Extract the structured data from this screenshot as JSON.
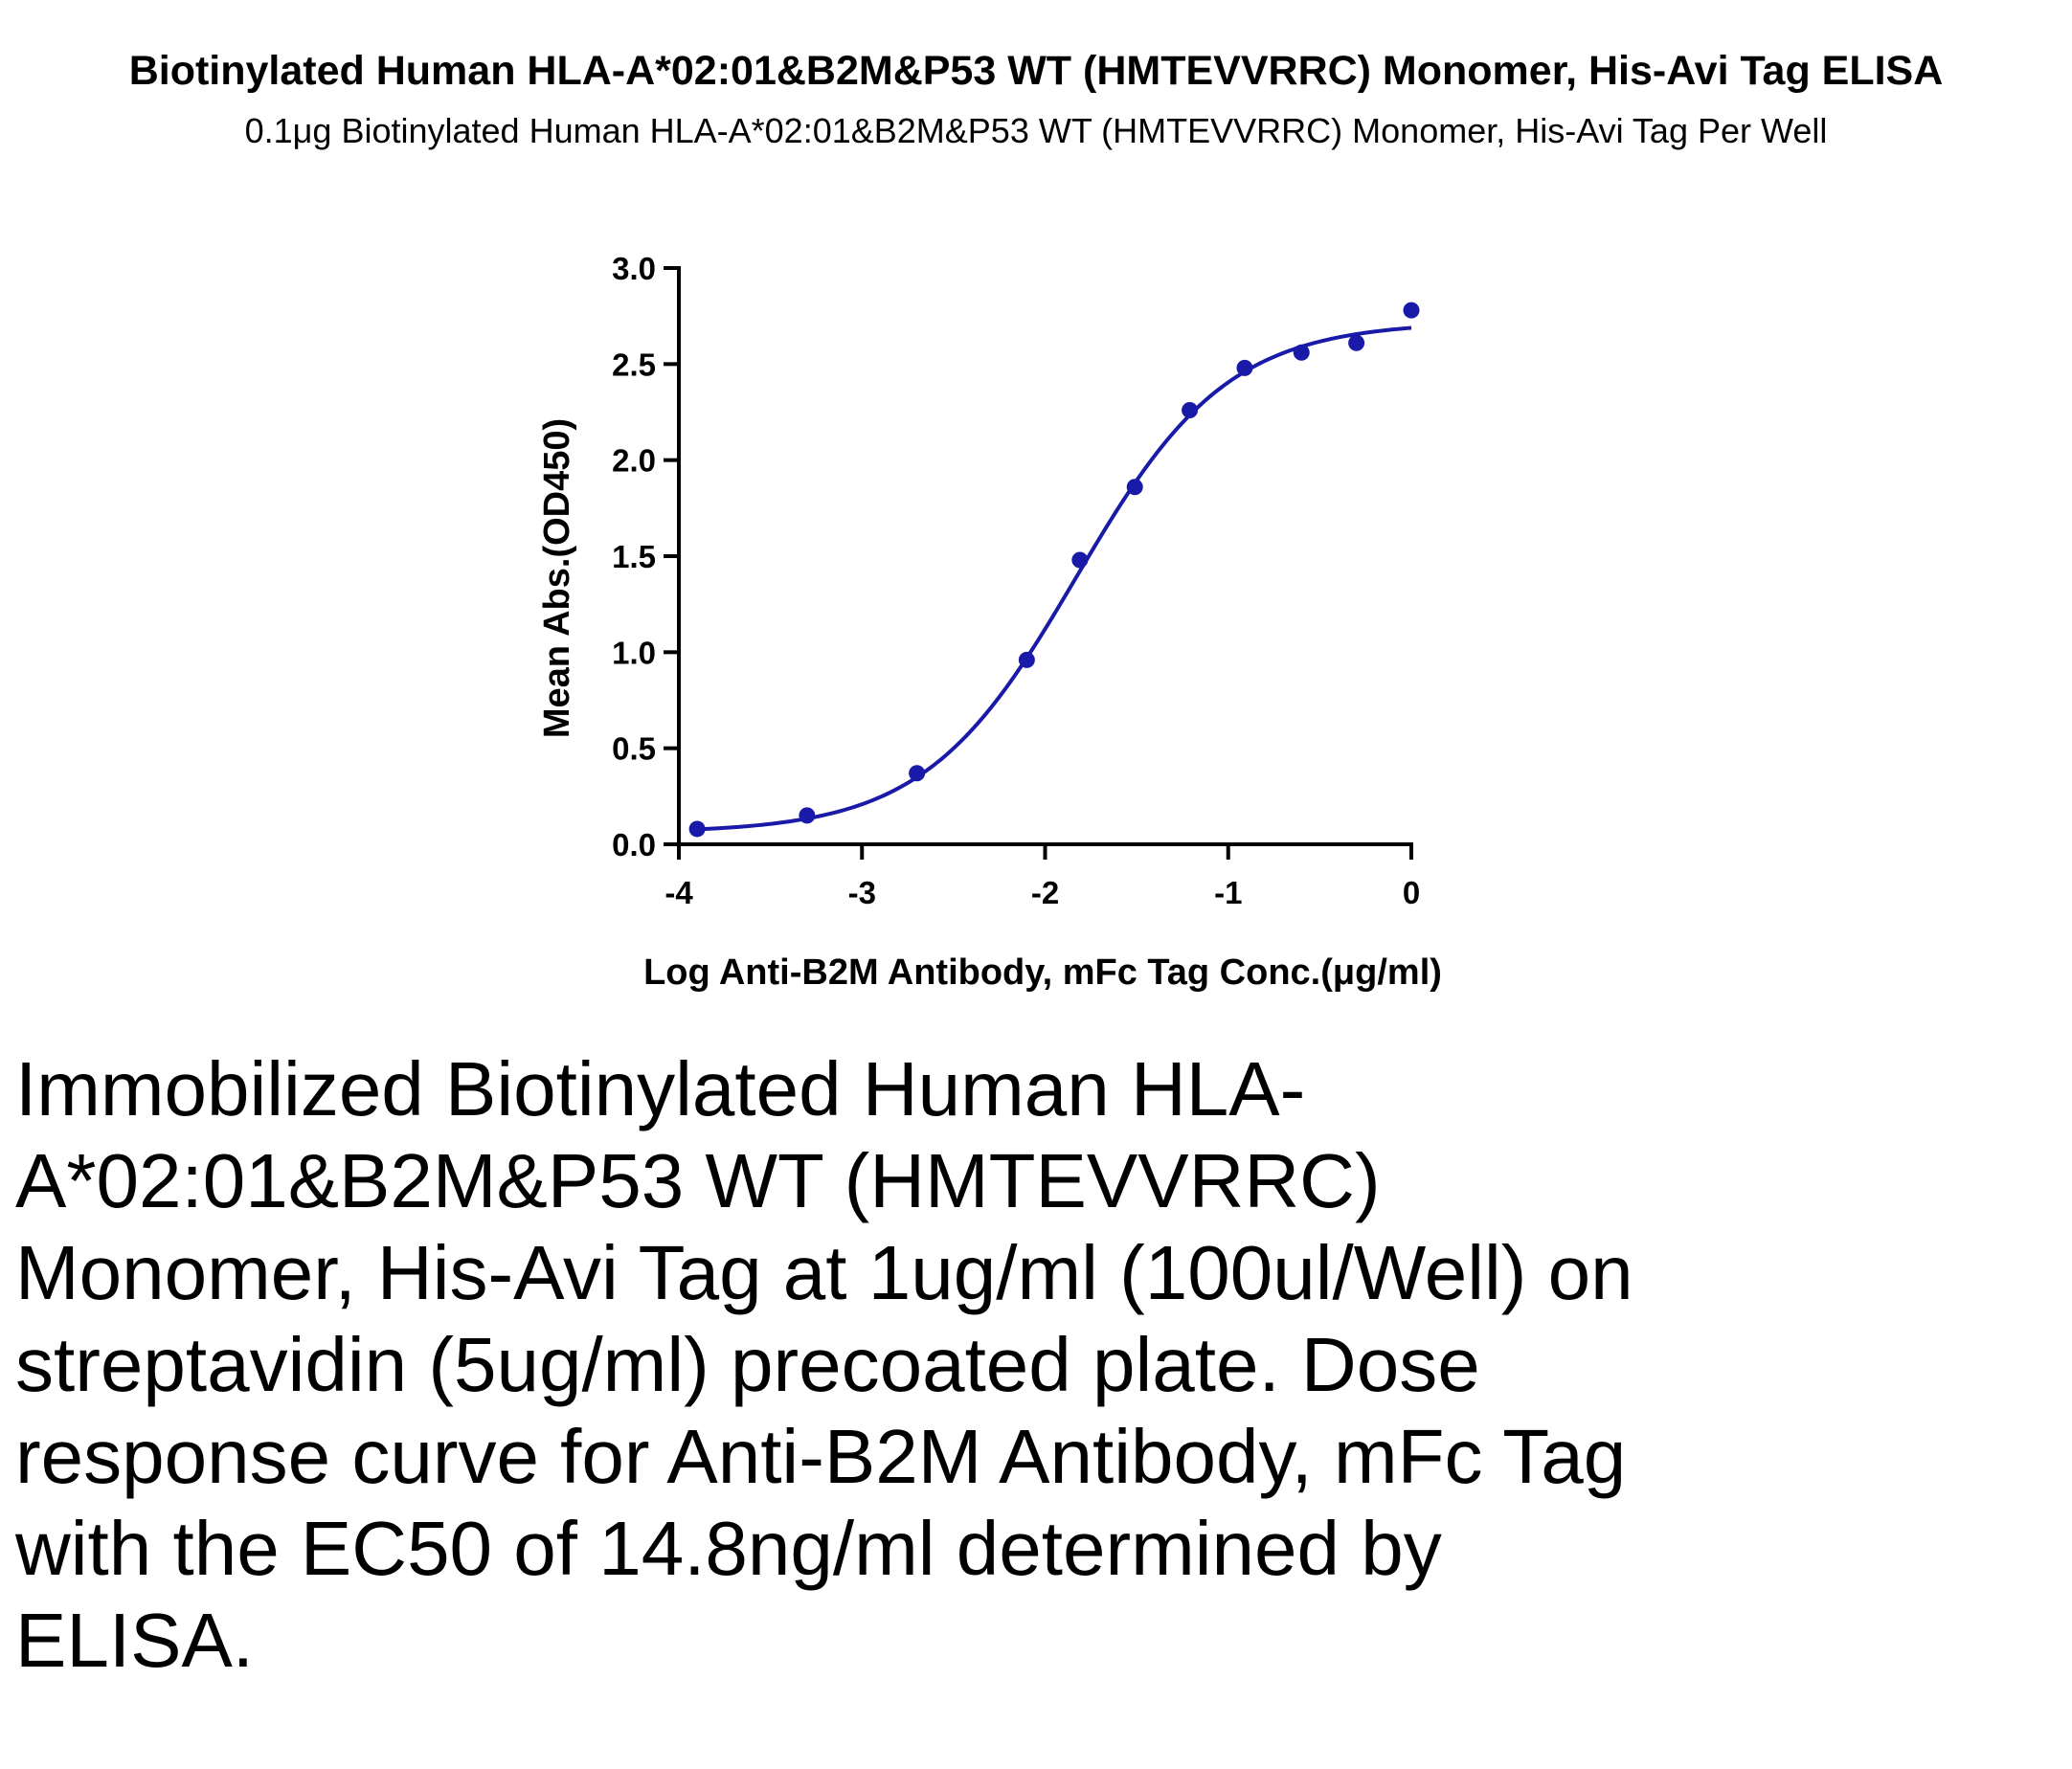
{
  "header": {
    "title": "Biotinylated Human HLA-A*02:01&B2M&P53 WT (HMTEVVRRC) Monomer, His-Avi Tag ELISA",
    "subtitle": "0.1μg Biotinylated Human HLA-A*02:01&B2M&P53 WT (HMTEVVRRC) Monomer, His-Avi Tag Per Well"
  },
  "caption": "Immobilized Biotinylated Human HLA-A*02:01&B2M&P53 WT (HMTEVVRRC) Monomer, His-Avi Tag at 1ug/ml (100ul/Well) on streptavidin (5ug/ml) precoated plate. Dose response curve for Anti-B2M Antibody, mFc Tag with the EC50 of 14.8ng/ml determined by ELISA.",
  "chart_data": {
    "type": "scatter",
    "title": "Biotinylated Human HLA-A*02:01&B2M&P53 WT (HMTEVVRRC) Monomer, His-Avi Tag ELISA",
    "subtitle": "0.1μg Biotinylated Human HLA-A*02:01&B2M&P53 WT (HMTEVVRRC) Monomer, His-Avi Tag Per Well",
    "xlabel": "Log Anti-B2M Antibody, mFc Tag Conc.(μg/ml)",
    "ylabel": "Mean Abs.(OD450)",
    "xlim": [
      -4,
      0
    ],
    "ylim": [
      0,
      3.0
    ],
    "x_ticks": [
      "-4",
      "-3",
      "-2",
      "-1",
      "0"
    ],
    "y_ticks": [
      "0.0",
      "0.5",
      "1.0",
      "1.5",
      "2.0",
      "2.5",
      "3.0"
    ],
    "grid": false,
    "color": "#1a1aa8",
    "series": [
      {
        "x": [
          -3.9,
          -3.3,
          -2.7,
          -2.1,
          -1.81,
          -1.51,
          -1.21,
          -0.91,
          -0.6,
          -0.3,
          0.0
        ],
        "y": [
          0.08,
          0.15,
          0.37,
          0.96,
          1.48,
          1.86,
          2.26,
          2.48,
          2.56,
          2.61,
          2.78
        ]
      }
    ],
    "fit": {
      "model": "4PL",
      "bottom": 0.06,
      "top": 2.72,
      "logEC50": -1.83,
      "hill": 1.05
    }
  }
}
